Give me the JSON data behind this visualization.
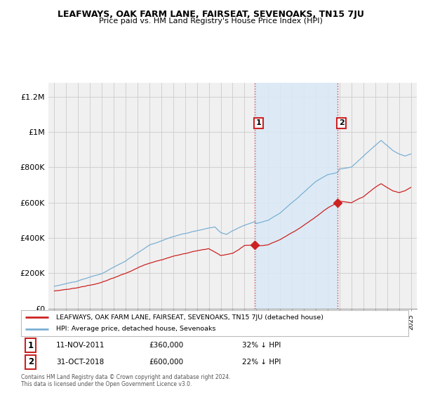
{
  "title": "LEAFWAYS, OAK FARM LANE, FAIRSEAT, SEVENOAKS, TN15 7JU",
  "subtitle": "Price paid vs. HM Land Registry's House Price Index (HPI)",
  "hpi_color": "#7ab0d4",
  "hpi_fill_color": "#daeaf5",
  "price_color": "#cc2222",
  "marker_color": "#cc2222",
  "sale1": {
    "date_num": 2011.87,
    "price": 360000,
    "label": "1",
    "date_str": "11-NOV-2011",
    "pct": "32% ↓ HPI"
  },
  "sale2": {
    "date_num": 2018.83,
    "price": 600000,
    "label": "2",
    "date_str": "31-OCT-2018",
    "pct": "22% ↓ HPI"
  },
  "legend_line1": "LEAFWAYS, OAK FARM LANE, FAIRSEAT, SEVENOAKS, TN15 7JU (detached house)",
  "legend_line2": "HPI: Average price, detached house, Sevenoaks",
  "footer1": "Contains HM Land Registry data © Crown copyright and database right 2024.",
  "footer2": "This data is licensed under the Open Government Licence v3.0.",
  "ylim": [
    0,
    1280000
  ],
  "xlim": [
    1994.5,
    2025.5
  ],
  "yticks": [
    0,
    200000,
    400000,
    600000,
    800000,
    1000000,
    1200000
  ],
  "ytick_labels": [
    "£0",
    "£200K",
    "£400K",
    "£600K",
    "£800K",
    "£1M",
    "£1.2M"
  ],
  "background_color": "#ffffff",
  "plot_bg_color": "#f0f0f0"
}
